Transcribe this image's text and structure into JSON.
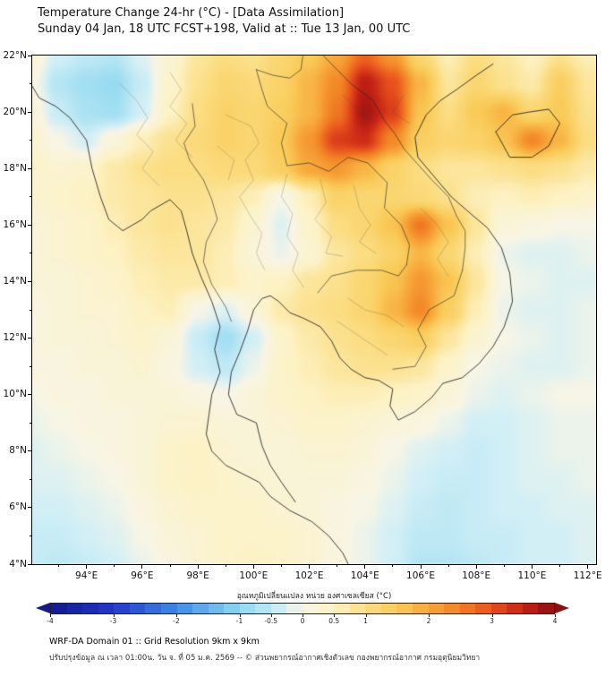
{
  "header": {
    "title": "Temperature Change 24-hr (°C) - [Data Assimilation]",
    "subtitle": "Sunday 04 Jan, 18 UTC FCST+198, Valid at :: Tue 13 Jan, 00 UTC"
  },
  "chart_data": {
    "type": "heatmap",
    "title": "Temperature Change 24-hr (°C) - [Data Assimilation]",
    "unit": "°C",
    "axes": {
      "lon_min": 92.05,
      "lon_max": 112.3,
      "lat_min": 4,
      "lat_max": 22
    },
    "x_ticks": [
      {
        "v": 94,
        "label": "94°E"
      },
      {
        "v": 96,
        "label": "96°E"
      },
      {
        "v": 98,
        "label": "98°E"
      },
      {
        "v": 100,
        "label": "100°E"
      },
      {
        "v": 102,
        "label": "102°E"
      },
      {
        "v": 104,
        "label": "104°E"
      },
      {
        "v": 106,
        "label": "106°E"
      },
      {
        "v": 108,
        "label": "108°E"
      },
      {
        "v": 110,
        "label": "110°E"
      },
      {
        "v": 112,
        "label": "112°E"
      }
    ],
    "y_ticks": [
      {
        "v": 4,
        "label": "4°N"
      },
      {
        "v": 6,
        "label": "6°N"
      },
      {
        "v": 8,
        "label": "8°N"
      },
      {
        "v": 10,
        "label": "10°N"
      },
      {
        "v": 12,
        "label": "12°N"
      },
      {
        "v": 14,
        "label": "14°N"
      },
      {
        "v": 16,
        "label": "16°N"
      },
      {
        "v": 18,
        "label": "18°N"
      },
      {
        "v": 20,
        "label": "20°N"
      },
      {
        "v": 22,
        "label": "22°N"
      }
    ],
    "grid": {
      "lon_start": 92,
      "lon_step": 1,
      "lat_start": 22,
      "lat_step": 1,
      "values": [
        [
          0.2,
          -0.3,
          -0.5,
          -0.6,
          -0.2,
          0.3,
          0.8,
          1.0,
          0.9,
          1.2,
          1.5,
          2.0,
          2.8,
          2.2,
          1.2,
          0.6,
          1.0,
          0.8,
          0.5,
          0.9,
          0.6
        ],
        [
          0.1,
          -0.6,
          -0.8,
          -0.9,
          -0.4,
          0.4,
          0.9,
          1.2,
          1.1,
          1.3,
          1.8,
          2.4,
          3.6,
          3.0,
          1.8,
          0.8,
          1.2,
          0.9,
          0.7,
          1.4,
          0.8
        ],
        [
          0.2,
          -0.4,
          -0.7,
          -0.8,
          -0.3,
          0.5,
          1.0,
          1.3,
          1.2,
          1.4,
          1.8,
          2.6,
          3.8,
          3.2,
          1.6,
          1.0,
          1.5,
          1.8,
          1.2,
          1.5,
          0.9
        ],
        [
          0.3,
          0.0,
          -0.3,
          0.2,
          0.6,
          0.9,
          1.1,
          1.3,
          1.2,
          1.5,
          2.2,
          3.2,
          3.4,
          2.4,
          1.4,
          1.2,
          1.3,
          1.6,
          2.4,
          1.8,
          1.0
        ],
        [
          0.4,
          0.3,
          0.4,
          0.7,
          0.9,
          1.0,
          1.0,
          1.1,
          1.1,
          1.4,
          2.0,
          2.2,
          1.8,
          1.3,
          1.0,
          0.8,
          0.8,
          0.9,
          1.0,
          0.9,
          0.7
        ],
        [
          0.3,
          0.4,
          0.5,
          0.7,
          0.8,
          0.9,
          0.9,
          0.8,
          0.6,
          0.0,
          0.6,
          1.3,
          1.2,
          1.2,
          1.1,
          0.9,
          0.6,
          0.5,
          0.6,
          0.5,
          0.4
        ],
        [
          0.2,
          0.3,
          0.4,
          0.6,
          0.8,
          0.9,
          0.8,
          0.7,
          0.3,
          -0.2,
          0.4,
          1.0,
          1.2,
          1.6,
          2.6,
          1.6,
          0.8,
          0.2,
          0.1,
          0.0,
          0.0
        ],
        [
          0.2,
          0.3,
          0.4,
          0.5,
          0.7,
          0.8,
          0.8,
          0.6,
          0.2,
          -0.1,
          0.3,
          0.8,
          1.0,
          1.3,
          1.8,
          1.2,
          0.6,
          -0.1,
          -0.2,
          -0.2,
          -0.1
        ],
        [
          0.2,
          0.2,
          0.3,
          0.4,
          0.6,
          0.7,
          0.7,
          0.6,
          0.4,
          0.5,
          0.8,
          0.9,
          1.2,
          1.6,
          2.2,
          1.6,
          0.8,
          0.0,
          -0.1,
          -0.2,
          -0.2
        ],
        [
          0.1,
          0.2,
          0.3,
          0.3,
          0.5,
          0.6,
          0.0,
          -0.2,
          0.2,
          0.7,
          0.9,
          1.0,
          1.2,
          1.8,
          2.4,
          1.4,
          0.6,
          -0.1,
          -0.2,
          -0.2,
          -0.1
        ],
        [
          0.1,
          0.2,
          0.2,
          0.3,
          0.4,
          0.2,
          -0.4,
          -0.8,
          -0.3,
          0.4,
          0.7,
          0.9,
          1.0,
          1.2,
          1.4,
          0.8,
          0.3,
          0.0,
          -0.1,
          -0.2,
          -0.1
        ],
        [
          0.1,
          0.1,
          0.2,
          0.2,
          0.3,
          0.1,
          -0.3,
          -0.5,
          -0.1,
          0.4,
          0.6,
          0.8,
          0.9,
          0.9,
          0.8,
          0.4,
          0.0,
          -0.1,
          -0.2,
          -0.2,
          -0.1
        ],
        [
          0.0,
          0.1,
          0.1,
          0.2,
          0.2,
          0.2,
          0.1,
          0.0,
          0.2,
          0.4,
          0.5,
          0.6,
          0.6,
          0.5,
          0.4,
          0.2,
          -0.1,
          -0.2,
          -0.1,
          0.0,
          0.0
        ],
        [
          -0.1,
          0.0,
          0.1,
          0.1,
          0.2,
          0.3,
          0.3,
          0.2,
          0.2,
          0.3,
          0.4,
          0.4,
          0.3,
          0.2,
          0.1,
          -0.1,
          -0.3,
          -0.3,
          -0.2,
          -0.1,
          -0.1
        ],
        [
          -0.2,
          -0.1,
          0.0,
          0.1,
          0.2,
          0.4,
          0.5,
          0.3,
          0.2,
          0.2,
          0.3,
          0.3,
          0.2,
          0.0,
          -0.2,
          -0.3,
          -0.4,
          -0.3,
          -0.2,
          -0.1,
          -0.1
        ],
        [
          -0.2,
          -0.2,
          -0.1,
          0.0,
          0.2,
          0.4,
          0.5,
          0.4,
          0.3,
          0.2,
          0.2,
          0.2,
          0.1,
          -0.1,
          -0.3,
          -0.4,
          -0.4,
          -0.3,
          -0.2,
          -0.2,
          -0.1
        ],
        [
          -0.3,
          -0.3,
          -0.2,
          -0.1,
          0.1,
          0.3,
          0.4,
          0.4,
          0.4,
          0.3,
          0.2,
          0.1,
          0.0,
          -0.2,
          -0.4,
          -0.5,
          -0.4,
          -0.3,
          -0.3,
          -0.2,
          -0.2
        ],
        [
          -0.4,
          -0.4,
          -0.3,
          -0.2,
          0.0,
          0.2,
          0.3,
          0.4,
          0.4,
          0.4,
          0.3,
          0.1,
          -0.1,
          -0.3,
          -0.5,
          -0.5,
          -0.4,
          -0.4,
          -0.3,
          -0.3,
          -0.2
        ],
        [
          -0.4,
          -0.5,
          -0.4,
          -0.3,
          -0.1,
          0.1,
          0.3,
          0.4,
          0.5,
          0.4,
          0.3,
          0.1,
          -0.1,
          -0.3,
          -0.6,
          -0.6,
          -0.5,
          -0.4,
          -0.3,
          -0.3,
          -0.2
        ]
      ]
    },
    "colormap": [
      {
        "v": -4.0,
        "c": "#14188c"
      },
      {
        "v": -3.0,
        "c": "#2438cc"
      },
      {
        "v": -2.0,
        "c": "#3f8ae6"
      },
      {
        "v": -1.0,
        "c": "#8ed8f0"
      },
      {
        "v": -0.3,
        "c": "#d2eff6"
      },
      {
        "v": 0.0,
        "c": "#f7f5e6"
      },
      {
        "v": 0.5,
        "c": "#fdf2c4"
      },
      {
        "v": 1.0,
        "c": "#fbdd82"
      },
      {
        "v": 1.5,
        "c": "#f9cb58"
      },
      {
        "v": 2.0,
        "c": "#f7a73a"
      },
      {
        "v": 2.5,
        "c": "#f28124"
      },
      {
        "v": 3.0,
        "c": "#e7511d"
      },
      {
        "v": 3.5,
        "c": "#c62314"
      },
      {
        "v": 4.0,
        "c": "#8c0f12"
      }
    ],
    "colorbar": {
      "title": "อุณหภูมิเปลี่ยนแปลง หน่วย องศาเซลเซียส (°C)",
      "min": -4,
      "max": 4,
      "ticks": [
        {
          "v": -4,
          "label": "-4"
        },
        {
          "v": -3,
          "label": "-3"
        },
        {
          "v": -2,
          "label": "-2"
        },
        {
          "v": -1,
          "label": "-1"
        },
        {
          "v": -0.5,
          "label": "-0.5"
        },
        {
          "v": 0,
          "label": "0"
        },
        {
          "v": 0.5,
          "label": "0.5"
        },
        {
          "v": 1,
          "label": "1"
        },
        {
          "v": 2,
          "label": "2"
        },
        {
          "v": 3,
          "label": "3"
        },
        {
          "v": 4,
          "label": "4"
        }
      ]
    },
    "legend_position": "bottom",
    "grid_lines": false
  },
  "footer": {
    "line1": "WRF-DA Domain 01 :: Grid Resolution 9km x 9km",
    "line2": "ปรับปรุงข้อมูล ณ เวลา 01:00น. วัน จ. ที่ 05 ม.ค. 2569 -- © ส่วนพยากรณ์อากาศเชิงตัวเลข กองพยากรณ์อากาศ กรมอุตุนิยมวิทยา"
  }
}
